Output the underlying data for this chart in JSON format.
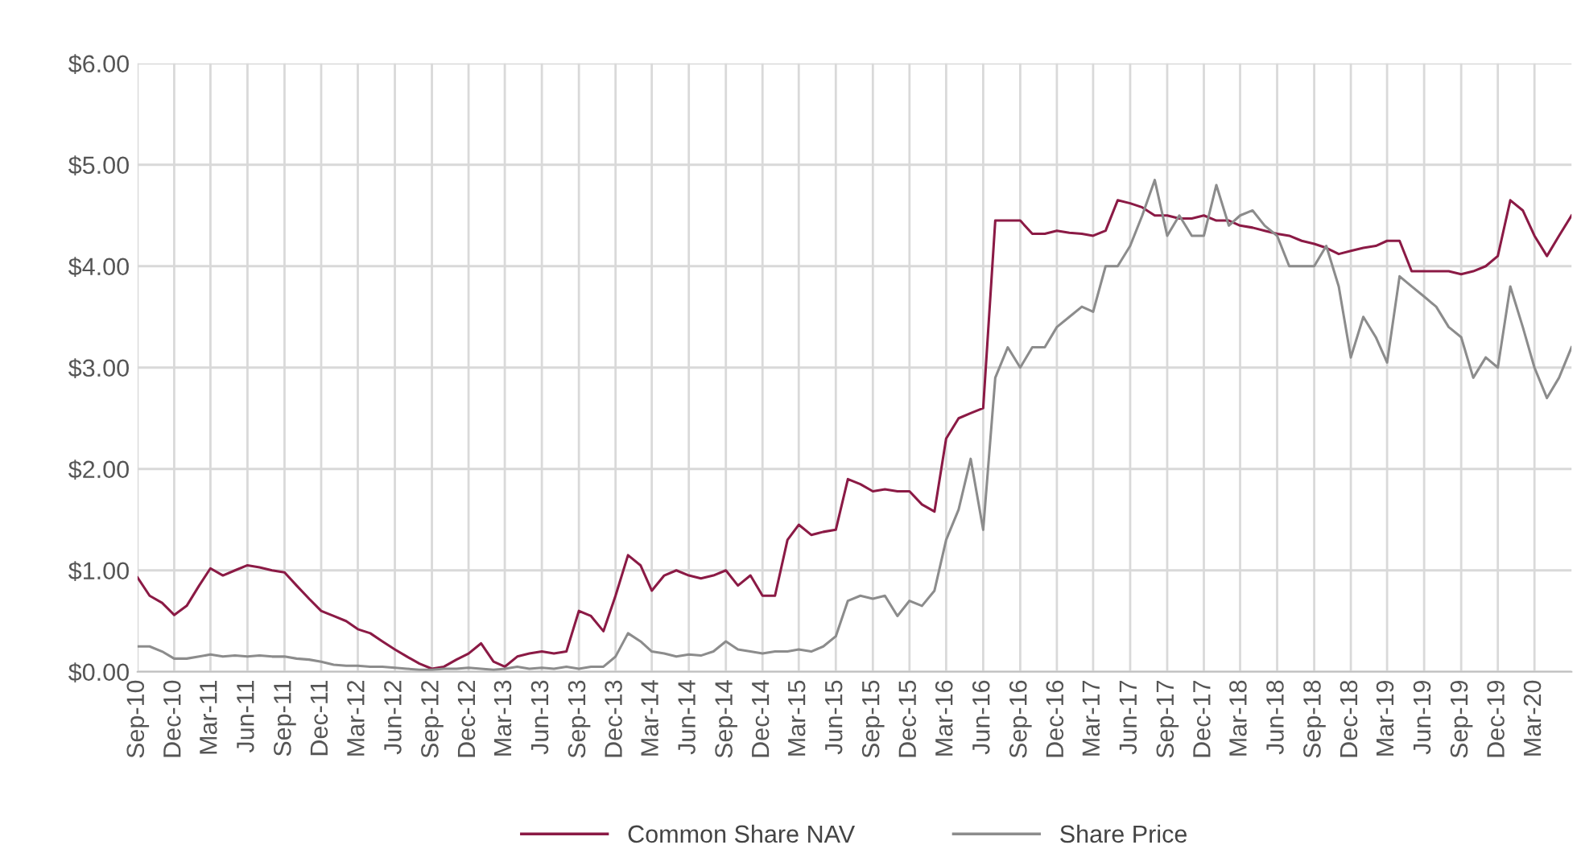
{
  "chart_data": {
    "type": "line",
    "x": [
      "2010-09",
      "2010-10",
      "2010-11",
      "2010-12",
      "2011-01",
      "2011-02",
      "2011-03",
      "2011-04",
      "2011-05",
      "2011-06",
      "2011-07",
      "2011-08",
      "2011-09",
      "2011-10",
      "2011-11",
      "2011-12",
      "2012-01",
      "2012-02",
      "2012-03",
      "2012-04",
      "2012-05",
      "2012-06",
      "2012-07",
      "2012-08",
      "2012-09",
      "2012-10",
      "2012-11",
      "2012-12",
      "2013-01",
      "2013-02",
      "2013-03",
      "2013-04",
      "2013-05",
      "2013-06",
      "2013-07",
      "2013-08",
      "2013-09",
      "2013-10",
      "2013-11",
      "2013-12",
      "2014-01",
      "2014-02",
      "2014-03",
      "2014-04",
      "2014-05",
      "2014-06",
      "2014-07",
      "2014-08",
      "2014-09",
      "2014-10",
      "2014-11",
      "2014-12",
      "2015-01",
      "2015-02",
      "2015-03",
      "2015-04",
      "2015-05",
      "2015-06",
      "2015-07",
      "2015-08",
      "2015-09",
      "2015-10",
      "2015-11",
      "2015-12",
      "2016-01",
      "2016-02",
      "2016-03",
      "2016-04",
      "2016-05",
      "2016-06",
      "2016-07",
      "2016-08",
      "2016-09",
      "2016-10",
      "2016-11",
      "2016-12",
      "2017-01",
      "2017-02",
      "2017-03",
      "2017-04",
      "2017-05",
      "2017-06",
      "2017-07",
      "2017-08",
      "2017-09",
      "2017-10",
      "2017-11",
      "2017-12",
      "2018-01",
      "2018-02",
      "2018-03",
      "2018-04",
      "2018-05",
      "2018-06",
      "2018-07",
      "2018-08",
      "2018-09",
      "2018-10",
      "2018-11",
      "2018-12",
      "2019-01",
      "2019-02",
      "2019-03",
      "2019-04",
      "2019-05",
      "2019-06",
      "2019-07",
      "2019-08",
      "2019-09",
      "2019-10",
      "2019-11",
      "2019-12",
      "2020-01",
      "2020-02",
      "2020-03",
      "2020-04",
      "2020-05",
      "2020-06"
    ],
    "series": [
      {
        "name": "Common Share NAV",
        "color": "#8b1a45",
        "values": [
          0.93,
          0.75,
          0.68,
          0.56,
          0.65,
          0.85,
          1.02,
          0.95,
          1.0,
          1.05,
          1.03,
          1.0,
          0.98,
          0.85,
          0.72,
          0.6,
          0.55,
          0.5,
          0.42,
          0.38,
          0.3,
          0.22,
          0.15,
          0.08,
          0.03,
          0.05,
          0.12,
          0.18,
          0.28,
          0.1,
          0.05,
          0.15,
          0.18,
          0.2,
          0.18,
          0.2,
          0.6,
          0.55,
          0.4,
          0.75,
          1.15,
          1.05,
          0.8,
          0.95,
          1.0,
          0.95,
          0.92,
          0.95,
          1.0,
          0.85,
          0.95,
          0.75,
          0.75,
          1.3,
          1.45,
          1.35,
          1.38,
          1.4,
          1.9,
          1.85,
          1.78,
          1.8,
          1.78,
          1.78,
          1.65,
          1.58,
          2.3,
          2.5,
          2.55,
          2.6,
          4.45,
          4.45,
          4.45,
          4.32,
          4.32,
          4.35,
          4.33,
          4.32,
          4.3,
          4.35,
          4.65,
          4.62,
          4.58,
          4.5,
          4.5,
          4.47,
          4.47,
          4.5,
          4.45,
          4.45,
          4.4,
          4.38,
          4.35,
          4.32,
          4.3,
          4.25,
          4.22,
          4.18,
          4.12,
          4.15,
          4.18,
          4.2,
          4.25,
          4.25,
          3.95,
          3.95,
          3.95,
          3.95,
          3.92,
          3.95,
          4.0,
          4.1,
          4.65,
          4.55,
          4.3,
          4.1,
          4.3,
          4.5
        ]
      },
      {
        "name": "Share Price",
        "color": "#8c8c8c",
        "values": [
          0.25,
          0.25,
          0.2,
          0.13,
          0.13,
          0.15,
          0.17,
          0.15,
          0.16,
          0.15,
          0.16,
          0.15,
          0.15,
          0.13,
          0.12,
          0.1,
          0.07,
          0.06,
          0.06,
          0.05,
          0.05,
          0.04,
          0.03,
          0.02,
          0.02,
          0.03,
          0.03,
          0.04,
          0.03,
          0.02,
          0.03,
          0.05,
          0.03,
          0.04,
          0.03,
          0.05,
          0.03,
          0.05,
          0.05,
          0.15,
          0.38,
          0.3,
          0.2,
          0.18,
          0.15,
          0.17,
          0.16,
          0.2,
          0.3,
          0.22,
          0.2,
          0.18,
          0.2,
          0.2,
          0.22,
          0.2,
          0.25,
          0.35,
          0.7,
          0.75,
          0.72,
          0.75,
          0.55,
          0.7,
          0.65,
          0.8,
          1.3,
          1.6,
          2.1,
          1.4,
          2.9,
          3.2,
          3.0,
          3.2,
          3.2,
          3.4,
          3.5,
          3.6,
          3.55,
          4.0,
          4.0,
          4.2,
          4.5,
          4.85,
          4.3,
          4.5,
          4.3,
          4.3,
          4.8,
          4.4,
          4.5,
          4.55,
          4.4,
          4.3,
          4.0,
          4.0,
          4.0,
          4.2,
          3.8,
          3.1,
          3.5,
          3.3,
          3.05,
          3.9,
          3.8,
          3.7,
          3.6,
          3.4,
          3.3,
          2.9,
          3.1,
          3.0,
          3.8,
          3.4,
          3.0,
          2.7,
          2.9,
          3.2
        ]
      }
    ],
    "xlim": [
      "2010-09",
      "2020-06"
    ],
    "xticks": [
      {
        "value": "2010-09",
        "label": "Sep-10"
      },
      {
        "value": "2010-12",
        "label": "Dec-10"
      },
      {
        "value": "2011-03",
        "label": "Mar-11"
      },
      {
        "value": "2011-06",
        "label": "Jun-11"
      },
      {
        "value": "2011-09",
        "label": "Sep-11"
      },
      {
        "value": "2011-12",
        "label": "Dec-11"
      },
      {
        "value": "2012-03",
        "label": "Mar-12"
      },
      {
        "value": "2012-06",
        "label": "Jun-12"
      },
      {
        "value": "2012-09",
        "label": "Sep-12"
      },
      {
        "value": "2012-12",
        "label": "Dec-12"
      },
      {
        "value": "2013-03",
        "label": "Mar-13"
      },
      {
        "value": "2013-06",
        "label": "Jun-13"
      },
      {
        "value": "2013-09",
        "label": "Sep-13"
      },
      {
        "value": "2013-12",
        "label": "Dec-13"
      },
      {
        "value": "2014-03",
        "label": "Mar-14"
      },
      {
        "value": "2014-06",
        "label": "Jun-14"
      },
      {
        "value": "2014-09",
        "label": "Sep-14"
      },
      {
        "value": "2014-12",
        "label": "Dec-14"
      },
      {
        "value": "2015-03",
        "label": "Mar-15"
      },
      {
        "value": "2015-06",
        "label": "Jun-15"
      },
      {
        "value": "2015-09",
        "label": "Sep-15"
      },
      {
        "value": "2015-12",
        "label": "Dec-15"
      },
      {
        "value": "2016-03",
        "label": "Mar-16"
      },
      {
        "value": "2016-06",
        "label": "Jun-16"
      },
      {
        "value": "2016-09",
        "label": "Sep-16"
      },
      {
        "value": "2016-12",
        "label": "Dec-16"
      },
      {
        "value": "2017-03",
        "label": "Mar-17"
      },
      {
        "value": "2017-06",
        "label": "Jun-17"
      },
      {
        "value": "2017-09",
        "label": "Sep-17"
      },
      {
        "value": "2017-12",
        "label": "Dec-17"
      },
      {
        "value": "2018-03",
        "label": "Mar-18"
      },
      {
        "value": "2018-06",
        "label": "Jun-18"
      },
      {
        "value": "2018-09",
        "label": "Sep-18"
      },
      {
        "value": "2018-12",
        "label": "Dec-18"
      },
      {
        "value": "2019-03",
        "label": "Mar-19"
      },
      {
        "value": "2019-06",
        "label": "Jun-19"
      },
      {
        "value": "2019-09",
        "label": "Sep-19"
      },
      {
        "value": "2019-12",
        "label": "Dec-19"
      },
      {
        "value": "2020-03",
        "label": "Mar-20"
      }
    ],
    "ylim": [
      0,
      6
    ],
    "yticks": [
      {
        "value": 0,
        "label": "$0.00"
      },
      {
        "value": 1,
        "label": "$1.00"
      },
      {
        "value": 2,
        "label": "$2.00"
      },
      {
        "value": 3,
        "label": "$3.00"
      },
      {
        "value": 4,
        "label": "$4.00"
      },
      {
        "value": 5,
        "label": "$5.00"
      },
      {
        "value": 6,
        "label": "$6.00"
      }
    ],
    "grid": true,
    "legend": "bottom",
    "marker": "none",
    "line_style": "solid"
  }
}
